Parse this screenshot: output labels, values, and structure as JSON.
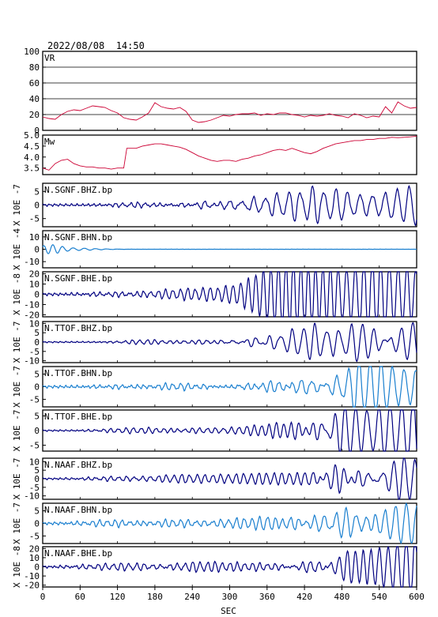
{
  "header": {
    "timestamp": "2022/08/08  14:50"
  },
  "colors": {
    "vr": "#cc0033",
    "mw": "#cc0033",
    "trace_dark": "#000080",
    "trace_light": "#1a7fcf",
    "frame": "#000000",
    "grid": "#000000",
    "background": "#ffffff"
  },
  "chart_data": [
    {
      "type": "line",
      "title": "VR",
      "xlim": [
        0,
        600
      ],
      "ylim": [
        0,
        100
      ],
      "yticks": [
        100,
        80,
        60,
        40,
        20,
        0
      ],
      "grid": true,
      "color": "#cc0033",
      "points": [
        [
          0,
          17
        ],
        [
          10,
          15
        ],
        [
          20,
          14
        ],
        [
          30,
          20
        ],
        [
          40,
          24
        ],
        [
          50,
          26
        ],
        [
          60,
          25
        ],
        [
          70,
          28
        ],
        [
          80,
          31
        ],
        [
          90,
          30
        ],
        [
          100,
          29
        ],
        [
          110,
          25
        ],
        [
          120,
          22
        ],
        [
          130,
          16
        ],
        [
          140,
          14
        ],
        [
          150,
          13
        ],
        [
          160,
          17
        ],
        [
          170,
          22
        ],
        [
          180,
          35
        ],
        [
          190,
          30
        ],
        [
          200,
          28
        ],
        [
          210,
          27
        ],
        [
          220,
          29
        ],
        [
          230,
          24
        ],
        [
          240,
          13
        ],
        [
          250,
          10
        ],
        [
          260,
          11
        ],
        [
          270,
          13
        ],
        [
          280,
          16
        ],
        [
          290,
          19
        ],
        [
          300,
          18
        ],
        [
          310,
          20
        ],
        [
          320,
          21
        ],
        [
          330,
          21
        ],
        [
          340,
          22
        ],
        [
          350,
          19
        ],
        [
          360,
          21
        ],
        [
          370,
          20
        ],
        [
          380,
          22
        ],
        [
          390,
          22
        ],
        [
          400,
          20
        ],
        [
          410,
          19
        ],
        [
          420,
          17
        ],
        [
          430,
          19
        ],
        [
          440,
          18
        ],
        [
          450,
          19
        ],
        [
          460,
          21
        ],
        [
          470,
          19
        ],
        [
          480,
          18
        ],
        [
          490,
          16
        ],
        [
          500,
          21
        ],
        [
          510,
          19
        ],
        [
          520,
          16
        ],
        [
          530,
          18
        ],
        [
          540,
          17
        ],
        [
          550,
          30
        ],
        [
          560,
          22
        ],
        [
          570,
          36
        ],
        [
          580,
          31
        ],
        [
          590,
          28
        ],
        [
          600,
          29
        ]
      ]
    },
    {
      "type": "line",
      "title": "Mw",
      "xlim": [
        0,
        600
      ],
      "ylim": [
        3.2,
        5.0
      ],
      "yticks": [
        "5.0",
        "4.5",
        "4.0",
        "3.5"
      ],
      "color": "#cc0033",
      "points": [
        [
          0,
          3.5
        ],
        [
          10,
          3.4
        ],
        [
          20,
          3.7
        ],
        [
          30,
          3.85
        ],
        [
          40,
          3.9
        ],
        [
          50,
          3.7
        ],
        [
          60,
          3.6
        ],
        [
          70,
          3.55
        ],
        [
          80,
          3.55
        ],
        [
          90,
          3.5
        ],
        [
          100,
          3.5
        ],
        [
          110,
          3.45
        ],
        [
          120,
          3.5
        ],
        [
          130,
          3.5
        ],
        [
          135,
          4.4
        ],
        [
          150,
          4.4
        ],
        [
          160,
          4.5
        ],
        [
          170,
          4.55
        ],
        [
          180,
          4.6
        ],
        [
          190,
          4.6
        ],
        [
          200,
          4.55
        ],
        [
          210,
          4.5
        ],
        [
          220,
          4.45
        ],
        [
          230,
          4.35
        ],
        [
          240,
          4.2
        ],
        [
          250,
          4.05
        ],
        [
          260,
          3.95
        ],
        [
          270,
          3.85
        ],
        [
          280,
          3.8
        ],
        [
          290,
          3.85
        ],
        [
          300,
          3.85
        ],
        [
          310,
          3.8
        ],
        [
          320,
          3.9
        ],
        [
          330,
          3.95
        ],
        [
          340,
          4.05
        ],
        [
          350,
          4.1
        ],
        [
          360,
          4.2
        ],
        [
          370,
          4.3
        ],
        [
          380,
          4.35
        ],
        [
          390,
          4.3
        ],
        [
          400,
          4.4
        ],
        [
          410,
          4.3
        ],
        [
          420,
          4.2
        ],
        [
          430,
          4.15
        ],
        [
          440,
          4.25
        ],
        [
          450,
          4.4
        ],
        [
          460,
          4.5
        ],
        [
          470,
          4.6
        ],
        [
          480,
          4.65
        ],
        [
          490,
          4.7
        ],
        [
          500,
          4.75
        ],
        [
          510,
          4.75
        ],
        [
          520,
          4.8
        ],
        [
          530,
          4.8
        ],
        [
          540,
          4.85
        ],
        [
          550,
          4.85
        ],
        [
          560,
          4.9
        ],
        [
          570,
          4.88
        ],
        [
          580,
          4.9
        ],
        [
          590,
          4.92
        ],
        [
          600,
          4.95
        ]
      ]
    },
    {
      "type": "line",
      "title": "N.SGNF.BHZ.bp",
      "ylabel": "X 10E -7",
      "ylim": [
        -8,
        8
      ],
      "yticks": [
        5,
        0,
        -5
      ],
      "yticklabels": [
        "5",
        "0",
        "-5"
      ],
      "color": "#000080",
      "noise": 0.5,
      "events": [
        [
          150,
          0.8,
          12,
          2.5
        ],
        [
          270,
          0.9,
          13,
          2.5
        ],
        [
          360,
          0.8,
          12,
          2.5
        ],
        [
          430,
          1.2,
          12,
          2.5
        ],
        [
          470,
          1.0,
          13,
          2.5
        ],
        [
          510,
          2.5,
          18,
          4.5
        ],
        [
          535,
          5.5,
          18,
          5.5
        ],
        [
          560,
          7.5,
          19,
          7
        ],
        [
          585,
          7.0,
          19,
          6
        ]
      ]
    },
    {
      "type": "line",
      "title": "N.SGNF.BHN.bp",
      "ylabel": "X 10E -4",
      "ylim": [
        -15,
        15
      ],
      "yticks": [
        10,
        0,
        -10
      ],
      "yticklabels": [
        "10",
        "0",
        "-10"
      ],
      "color": "#1a7fcf",
      "noise": 0.05,
      "events": [
        [
          0,
          2.0,
          14,
          1.2
        ],
        [
          12,
          2.5,
          16,
          1.0
        ],
        [
          45,
          0.8,
          18,
          1.4
        ],
        [
          80,
          0.3,
          18,
          1.4
        ]
      ]
    },
    {
      "type": "line",
      "title": "N.SGNF.BHE.bp",
      "ylabel": "X 10E -8",
      "ylim": [
        -22,
        22
      ],
      "yticks": [
        20,
        10,
        0,
        -10,
        -20
      ],
      "yticklabels": [
        "20",
        "10",
        "0",
        "-10",
        "-20"
      ],
      "color": "#000080",
      "noise": 1.5,
      "events": [
        [
          150,
          5,
          12,
          4
        ],
        [
          180,
          6,
          12,
          4
        ],
        [
          220,
          7,
          12,
          4
        ],
        [
          250,
          6,
          12,
          4
        ],
        [
          290,
          8,
          12,
          4
        ],
        [
          330,
          9,
          12,
          4
        ],
        [
          360,
          11,
          12,
          4
        ],
        [
          375,
          14,
          12,
          3
        ],
        [
          400,
          18,
          12,
          3.5
        ],
        [
          425,
          13,
          12,
          3.5
        ],
        [
          445,
          15,
          12,
          3.5
        ],
        [
          470,
          12,
          12,
          3.5
        ],
        [
          500,
          11,
          12,
          3.5
        ],
        [
          525,
          18,
          13,
          3.5
        ],
        [
          555,
          22,
          14,
          4
        ],
        [
          580,
          22,
          14,
          4
        ]
      ]
    },
    {
      "type": "line",
      "title": "N.TTOF.BHZ.bp",
      "ylabel": "X 10E -7",
      "ylim": [
        -11,
        11
      ],
      "yticks": [
        10,
        5,
        0,
        -5,
        -10
      ],
      "yticklabels": [
        "10",
        "5",
        "0",
        "-5",
        "-10"
      ],
      "color": "#000080",
      "noise": 0.4,
      "events": [
        [
          165,
          1.2,
          12,
          2.5
        ],
        [
          260,
          1.0,
          12,
          2.5
        ],
        [
          350,
          1.4,
          12,
          2.5
        ],
        [
          420,
          1.0,
          12,
          2.5
        ],
        [
          470,
          1.6,
          12,
          2.5
        ],
        [
          510,
          4.0,
          16,
          4
        ],
        [
          540,
          7.0,
          18,
          5
        ],
        [
          565,
          9.5,
          19,
          6
        ],
        [
          590,
          10.5,
          19,
          5
        ]
      ]
    },
    {
      "type": "line",
      "title": "N.TTOF.BHN.bp",
      "ylabel": "X 10E -7",
      "ylim": [
        -8,
        8
      ],
      "yticks": [
        5,
        0,
        -5
      ],
      "yticklabels": [
        "5",
        "0",
        "-5"
      ],
      "color": "#1a7fcf",
      "noise": 0.6,
      "events": [
        [
          150,
          1.3,
          12,
          3.5
        ],
        [
          180,
          1.1,
          12,
          3.5
        ],
        [
          230,
          1.4,
          12,
          3.5
        ],
        [
          270,
          1.2,
          12,
          3.5
        ],
        [
          310,
          1.3,
          12,
          3.5
        ],
        [
          350,
          1.6,
          12,
          3.5
        ],
        [
          400,
          1.6,
          12,
          3.5
        ],
        [
          440,
          1.5,
          12,
          3.5
        ],
        [
          480,
          2.0,
          12,
          3.5
        ],
        [
          505,
          3.5,
          16,
          4
        ],
        [
          540,
          5.5,
          18,
          5
        ],
        [
          560,
          7.5,
          19,
          5
        ],
        [
          590,
          7.0,
          19,
          5
        ]
      ]
    },
    {
      "type": "line",
      "title": "N.TTOF.BHE.bp",
      "ylabel": "X 10E -7",
      "ylim": [
        -7,
        7
      ],
      "yticks": [
        5,
        0,
        -5
      ],
      "yticklabels": [
        "5",
        "0",
        "-5"
      ],
      "color": "#000080",
      "noise": 0.3,
      "events": [
        [
          130,
          0.6,
          12,
          3
        ],
        [
          180,
          0.7,
          12,
          3
        ],
        [
          260,
          1.0,
          12,
          3
        ],
        [
          300,
          0.9,
          12,
          3
        ],
        [
          350,
          1.0,
          12,
          3
        ],
        [
          395,
          1.5,
          12,
          3
        ],
        [
          420,
          1.8,
          12,
          3.5
        ],
        [
          450,
          1.6,
          12,
          3.5
        ],
        [
          480,
          1.5,
          12,
          3.5
        ],
        [
          510,
          2.0,
          14,
          3.5
        ],
        [
          545,
          3.0,
          16,
          4
        ],
        [
          570,
          6.0,
          18,
          4
        ],
        [
          590,
          6.5,
          18,
          4
        ]
      ]
    },
    {
      "type": "line",
      "title": "N.NAAF.BHZ.bp",
      "ylabel": "X 10E -7",
      "ylim": [
        -12,
        12
      ],
      "yticks": [
        10,
        5,
        0,
        -5,
        -10
      ],
      "yticklabels": [
        "10",
        "5",
        "0",
        "-5",
        "-10"
      ],
      "color": "#000080",
      "noise": 0.6,
      "events": [
        [
          130,
          1.5,
          12,
          3.5
        ],
        [
          170,
          1.3,
          12,
          3.5
        ],
        [
          220,
          1.8,
          12,
          3.5
        ],
        [
          270,
          1.4,
          12,
          3.5
        ],
        [
          320,
          1.7,
          12,
          3.5
        ],
        [
          380,
          2.0,
          12,
          3.5
        ],
        [
          430,
          2.2,
          12,
          3.5
        ],
        [
          480,
          2.5,
          12,
          3.5
        ],
        [
          520,
          3.0,
          14,
          3.5
        ],
        [
          545,
          4.5,
          16,
          4
        ],
        [
          570,
          7.0,
          18,
          4
        ],
        [
          595,
          12.0,
          18,
          4
        ]
      ]
    },
    {
      "type": "line",
      "title": "N.NAAF.BHN.bp",
      "ylabel": "X 10E -7",
      "ylim": [
        -8,
        8
      ],
      "yticks": [
        5,
        0,
        -5
      ],
      "yticklabels": [
        "5",
        "0",
        "-5"
      ],
      "color": "#1a7fcf",
      "noise": 0.6,
      "events": [
        [
          100,
          0.8,
          12,
          3
        ],
        [
          150,
          1.5,
          12,
          3.5
        ],
        [
          180,
          1.4,
          12,
          3.5
        ],
        [
          230,
          1.5,
          12,
          3.5
        ],
        [
          270,
          1.2,
          12,
          3.5
        ],
        [
          320,
          1.4,
          12,
          3.5
        ],
        [
          370,
          1.8,
          12,
          3.5
        ],
        [
          420,
          1.6,
          12,
          3.5
        ],
        [
          460,
          2.0,
          12,
          3.5
        ],
        [
          500,
          3.0,
          16,
          4
        ],
        [
          530,
          4.5,
          17,
          4
        ],
        [
          555,
          6.5,
          18,
          4
        ],
        [
          580,
          7.5,
          18,
          4
        ]
      ]
    },
    {
      "type": "line",
      "title": "N.NAAF.BHE.bp",
      "ylabel": "X 10E -8",
      "ylim": [
        -22,
        22
      ],
      "yticks": [
        20,
        10,
        0,
        -10,
        -20
      ],
      "yticklabels": [
        "20",
        "10",
        "0",
        "-10",
        "-20"
      ],
      "color": "#000080",
      "noise": 1.5,
      "events": [
        [
          120,
          4,
          12,
          4
        ],
        [
          160,
          8,
          12,
          4
        ],
        [
          200,
          7,
          12,
          4
        ],
        [
          240,
          9,
          12,
          4
        ],
        [
          270,
          6,
          12,
          4
        ],
        [
          310,
          10,
          12,
          4
        ],
        [
          340,
          12,
          12,
          4
        ],
        [
          370,
          14,
          12,
          3.5
        ],
        [
          400,
          10,
          12,
          3.5
        ],
        [
          430,
          9,
          12,
          3.5
        ],
        [
          460,
          11,
          12,
          3.5
        ],
        [
          500,
          12,
          12,
          3.5
        ],
        [
          525,
          20,
          14,
          3.5
        ],
        [
          550,
          22,
          15,
          3.5
        ],
        [
          575,
          22,
          15,
          3.5
        ],
        [
          595,
          21,
          14,
          3
        ]
      ]
    }
  ],
  "x_axis": {
    "label": "SEC",
    "ticks": [
      0,
      60,
      120,
      180,
      240,
      300,
      360,
      420,
      480,
      540,
      600
    ]
  }
}
